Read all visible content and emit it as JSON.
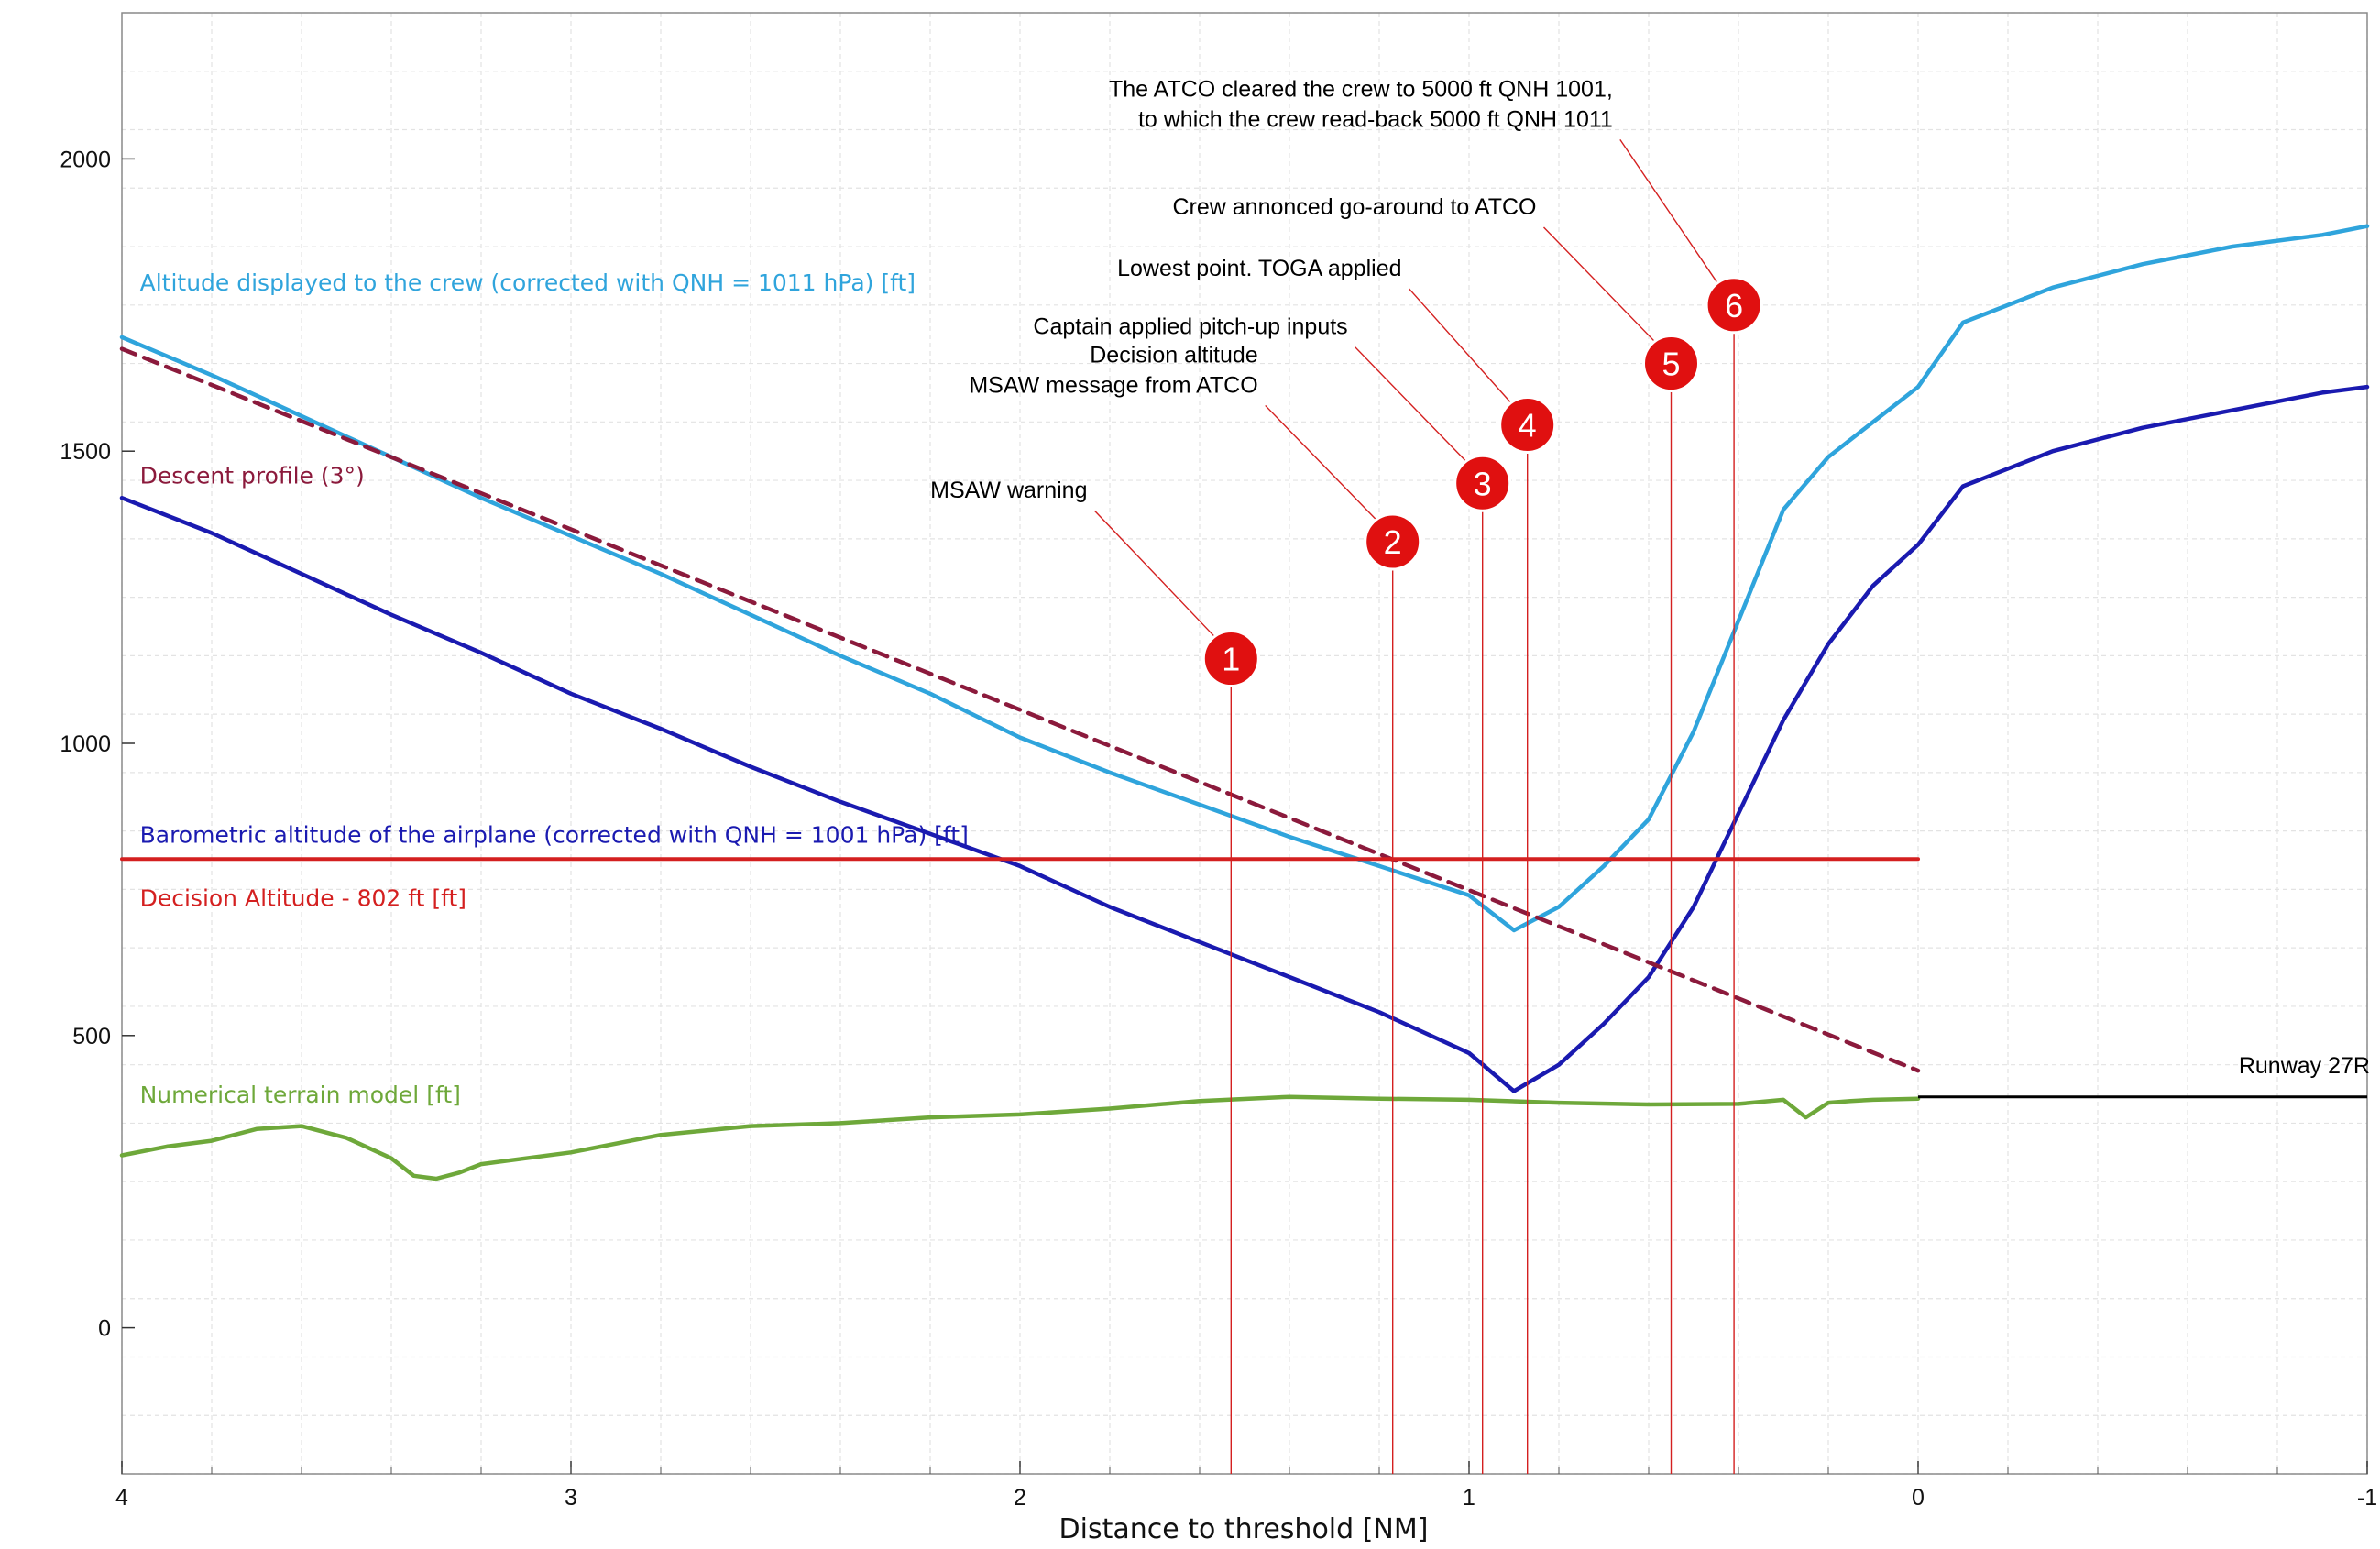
{
  "chart_data": {
    "type": "line",
    "title": "",
    "xlabel": "Distance to threshold [NM]",
    "ylabel": "",
    "xlim": [
      4,
      -1
    ],
    "ylim": [
      -250,
      2250
    ],
    "x_ticks": [
      4,
      3,
      2,
      1,
      0,
      -1
    ],
    "x_tick_labels": [
      "4",
      "3",
      "2",
      "1",
      "0",
      "-1"
    ],
    "y_ticks": [
      0,
      500,
      1000,
      1500,
      2000
    ],
    "y_tick_labels": [
      "0",
      "500",
      "1000",
      "1500",
      "2000"
    ],
    "grid": true,
    "series": [
      {
        "name": "Altitude displayed to the crew (corrected with QNH = 1011 hPa) [ft]",
        "color": "#2fa4dc",
        "style": "solid",
        "x": [
          4.0,
          3.8,
          3.6,
          3.4,
          3.2,
          3.0,
          2.8,
          2.6,
          2.4,
          2.2,
          2.0,
          1.8,
          1.6,
          1.4,
          1.2,
          1.0,
          0.9,
          0.8,
          0.7,
          0.6,
          0.5,
          0.4,
          0.3,
          0.2,
          0.1,
          0.0,
          -0.1,
          -0.3,
          -0.5,
          -0.7,
          -0.9,
          -1.0
        ],
        "y": [
          1695,
          1630,
          1560,
          1490,
          1420,
          1355,
          1290,
          1220,
          1150,
          1085,
          1010,
          950,
          895,
          840,
          790,
          740,
          680,
          720,
          790,
          870,
          1020,
          1210,
          1400,
          1490,
          1550,
          1610,
          1720,
          1780,
          1820,
          1850,
          1870,
          1885
        ]
      },
      {
        "name": "Barometric altitude of the airplane (corrected with QNH = 1001 hPa) [ft]",
        "color": "#1a1ab0",
        "style": "solid",
        "x": [
          4.0,
          3.8,
          3.6,
          3.4,
          3.2,
          3.0,
          2.8,
          2.6,
          2.4,
          2.2,
          2.0,
          1.8,
          1.6,
          1.4,
          1.2,
          1.0,
          0.9,
          0.8,
          0.7,
          0.6,
          0.5,
          0.4,
          0.3,
          0.2,
          0.1,
          0.0,
          -0.1,
          -0.3,
          -0.5,
          -0.7,
          -0.9,
          -1.0
        ],
        "y": [
          1420,
          1360,
          1290,
          1220,
          1155,
          1085,
          1025,
          960,
          900,
          845,
          790,
          720,
          660,
          600,
          540,
          470,
          405,
          450,
          520,
          600,
          720,
          880,
          1040,
          1170,
          1270,
          1340,
          1440,
          1500,
          1540,
          1570,
          1600,
          1610
        ]
      },
      {
        "name": "Descent profile (3°)",
        "color": "#8b1a3c",
        "style": "dashed",
        "x": [
          4.0,
          0.0
        ],
        "y": [
          1675,
          440
        ]
      },
      {
        "name": "Decision Altitude - 802 ft [ft]",
        "color": "#d42020",
        "style": "solid",
        "x": [
          4.0,
          0.0
        ],
        "y": [
          802,
          802
        ]
      },
      {
        "name": "Numerical terrain model [ft]",
        "color": "#6ea83a",
        "style": "solid",
        "x": [
          4.0,
          3.9,
          3.8,
          3.7,
          3.6,
          3.5,
          3.4,
          3.35,
          3.3,
          3.25,
          3.2,
          3.1,
          3.0,
          2.8,
          2.6,
          2.4,
          2.2,
          2.0,
          1.8,
          1.6,
          1.4,
          1.2,
          1.0,
          0.8,
          0.6,
          0.4,
          0.3,
          0.25,
          0.2,
          0.15,
          0.1,
          0.0
        ],
        "y": [
          295,
          310,
          320,
          340,
          345,
          325,
          290,
          260,
          255,
          265,
          280,
          290,
          300,
          330,
          345,
          350,
          360,
          365,
          375,
          388,
          395,
          392,
          390,
          385,
          382,
          383,
          390,
          360,
          385,
          388,
          390,
          392
        ]
      }
    ],
    "runway": {
      "label": "Runway 27R",
      "color": "#000000",
      "x": [
        0.0,
        -1.0
      ],
      "y": [
        395,
        395
      ]
    },
    "legend_labels": [
      {
        "text": "Altitude displayed to the crew (corrected with QNH = 1011 hPa) [ft]",
        "color": "#2fa4dc",
        "x": 3.96,
        "y": 1775
      },
      {
        "text": "Descent profile (3°)",
        "color": "#8b1a3c",
        "x": 3.96,
        "y": 1445
      },
      {
        "text": "Barometric altitude of the airplane (corrected with QNH = 1001 hPa) [ft]",
        "color": "#1a1ab0",
        "x": 3.96,
        "y": 830
      },
      {
        "text": "Decision Altitude - 802 ft [ft]",
        "color": "#d42020",
        "x": 3.96,
        "y": 722
      },
      {
        "text": "Numerical terrain model [ft]",
        "color": "#6ea83a",
        "x": 3.96,
        "y": 385
      }
    ],
    "events": [
      {
        "number": "1",
        "x": 1.53,
        "y_marker": 1145,
        "lines": [
          "MSAW warning"
        ],
        "label_x": 1.85,
        "label_y": 1420
      },
      {
        "number": "2",
        "x": 1.17,
        "y_marker": 1345,
        "lines": [
          "Decision altitude",
          "MSAW message from ATCO"
        ],
        "label_x": 1.47,
        "label_y": 1600
      },
      {
        "number": "3",
        "x": 0.97,
        "y_marker": 1445,
        "lines": [
          "Captain applied pitch-up inputs"
        ],
        "label_x": 1.27,
        "label_y": 1700
      },
      {
        "number": "4",
        "x": 0.87,
        "y_marker": 1545,
        "lines": [
          "Lowest point. TOGA applied"
        ],
        "label_x": 1.15,
        "label_y": 1800
      },
      {
        "number": "5",
        "x": 0.55,
        "y_marker": 1650,
        "lines": [
          "Crew annonced go-around to ATCO"
        ],
        "label_x": 0.85,
        "label_y": 1905
      },
      {
        "number": "6",
        "x": 0.41,
        "y_marker": 1750,
        "lines": [
          "The ATCO cleared the crew to 5000 ft QNH 1001,",
          "to which the crew read-back 5000 ft QNH 1011"
        ],
        "label_x": 0.68,
        "label_y": 2055
      }
    ]
  }
}
